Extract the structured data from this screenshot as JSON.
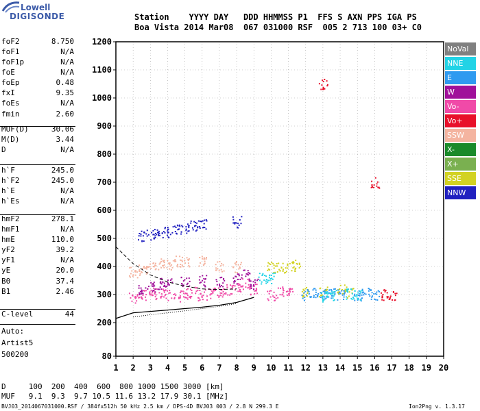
{
  "logo": {
    "top": "Lowell",
    "bottom": "DIGISONDE"
  },
  "header": {
    "line1": "Station    YYYY DAY   DDD HHMMSS P1  FFS S AXN PPS IGA PS",
    "line2": "Boa Vista 2014 Mar08  067 031000 RSF  005 2 713 100 03+ C0"
  },
  "params": [
    {
      "label": "foF2",
      "value": "8.750"
    },
    {
      "label": "foF1",
      "value": "N/A"
    },
    {
      "label": "foF1p",
      "value": "N/A"
    },
    {
      "label": "foE",
      "value": "N/A"
    },
    {
      "label": "foEp",
      "value": "0.48"
    },
    {
      "label": "fxI",
      "value": "9.35"
    },
    {
      "label": "foEs",
      "value": "N/A"
    },
    {
      "label": "fmin",
      "value": "2.60"
    },
    {
      "label": "MUF(D)",
      "value": "30.06"
    },
    {
      "label": "M(D)",
      "value": "3.44"
    },
    {
      "label": "D",
      "value": "N/A"
    },
    {
      "label": "h`F",
      "value": "245.0"
    },
    {
      "label": "h`F2",
      "value": "245.0"
    },
    {
      "label": "h`E",
      "value": "N/A"
    },
    {
      "label": "h`Es",
      "value": "N/A"
    },
    {
      "label": "hmF2",
      "value": "278.1"
    },
    {
      "label": "hmF1",
      "value": "N/A"
    },
    {
      "label": "hmE",
      "value": "110.0"
    },
    {
      "label": "yF2",
      "value": "39.2"
    },
    {
      "label": "yF1",
      "value": "N/A"
    },
    {
      "label": "yE",
      "value": "20.0"
    },
    {
      "label": "B0",
      "value": "37.4"
    },
    {
      "label": "B1",
      "value": "2.46"
    },
    {
      "label": "C-level",
      "value": "44"
    }
  ],
  "auto": {
    "line1": "Auto:",
    "line2": "Artist5",
    "line3": "500200"
  },
  "legend": [
    {
      "label": "NoVal",
      "color": "#808080"
    },
    {
      "label": "NNE",
      "color": "#22d3e6"
    },
    {
      "label": "E",
      "color": "#2f9af0"
    },
    {
      "label": "W",
      "color": "#a0109a"
    },
    {
      "label": "Vo-",
      "color": "#f04aa8"
    },
    {
      "label": "Vo+",
      "color": "#e8102a"
    },
    {
      "label": "SSW",
      "color": "#f4b4a0"
    },
    {
      "label": "X-",
      "color": "#1a8a2a"
    },
    {
      "label": "X+",
      "color": "#7ab050"
    },
    {
      "label": "SSE",
      "color": "#d2d222"
    },
    {
      "label": "NNW",
      "color": "#2020c0"
    }
  ],
  "chart_data": {
    "type": "scatter",
    "x_ticks": [
      "1",
      "2",
      "3",
      "4",
      "5",
      "6",
      "7",
      "8",
      "9",
      "10",
      "11",
      "12",
      "13",
      "14",
      "15",
      "16",
      "17",
      "18",
      "19",
      "20"
    ],
    "y_ticks": [
      "80",
      "200",
      "300",
      "400",
      "500",
      "600",
      "700",
      "800",
      "900",
      "1000",
      "1100",
      "1200"
    ],
    "xlim": [
      1,
      20
    ],
    "ylim": [
      80,
      1200
    ],
    "series": [
      {
        "label": "Vo-",
        "points": [
          [
            2.0,
            290
          ],
          [
            2.5,
            300
          ],
          [
            3.0,
            310
          ],
          [
            3.5,
            305
          ],
          [
            4.0,
            300
          ],
          [
            4.5,
            295
          ],
          [
            5.0,
            305
          ],
          [
            5.5,
            310
          ],
          [
            6.0,
            300
          ],
          [
            6.5,
            305
          ],
          [
            7.0,
            310
          ],
          [
            7.5,
            320
          ],
          [
            8.0,
            330
          ],
          [
            8.5,
            340
          ],
          [
            9.0,
            320
          ],
          [
            10.0,
            300
          ],
          [
            10.5,
            310
          ],
          [
            11.0,
            310
          ]
        ]
      },
      {
        "label": "W",
        "points": [
          [
            2.5,
            320
          ],
          [
            3.0,
            330
          ],
          [
            3.5,
            340
          ],
          [
            4.0,
            340
          ],
          [
            5.0,
            350
          ],
          [
            6.0,
            350
          ],
          [
            7.0,
            350
          ],
          [
            8.0,
            360
          ],
          [
            8.5,
            370
          ],
          [
            9.0,
            340
          ]
        ]
      },
      {
        "label": "SSW",
        "points": [
          [
            2.0,
            380
          ],
          [
            2.5,
            390
          ],
          [
            3.0,
            400
          ],
          [
            3.5,
            410
          ],
          [
            4.0,
            410
          ],
          [
            4.5,
            420
          ],
          [
            5.0,
            420
          ],
          [
            6.0,
            420
          ],
          [
            7.0,
            400
          ],
          [
            8.0,
            400
          ]
        ]
      },
      {
        "label": "NNW",
        "points": [
          [
            2.5,
            510
          ],
          [
            3.0,
            515
          ],
          [
            3.5,
            520
          ],
          [
            4.0,
            525
          ],
          [
            4.5,
            530
          ],
          [
            5.0,
            540
          ],
          [
            5.5,
            545
          ],
          [
            6.0,
            550
          ],
          [
            8.0,
            560
          ]
        ]
      },
      {
        "label": "SSE",
        "points": [
          [
            10.0,
            400
          ],
          [
            10.5,
            395
          ],
          [
            11.0,
            400
          ],
          [
            11.5,
            405
          ],
          [
            12.0,
            310
          ],
          [
            13.0,
            310
          ],
          [
            14.0,
            320
          ],
          [
            14.5,
            310
          ]
        ]
      },
      {
        "label": "E",
        "points": [
          [
            12.0,
            300
          ],
          [
            12.5,
            305
          ],
          [
            13.0,
            300
          ],
          [
            13.5,
            305
          ],
          [
            14.0,
            300
          ],
          [
            15.0,
            300
          ],
          [
            15.5,
            305
          ],
          [
            16.0,
            300
          ]
        ]
      },
      {
        "label": "NNE",
        "points": [
          [
            9.5,
            360
          ],
          [
            10.0,
            360
          ],
          [
            13.0,
            295
          ],
          [
            13.5,
            300
          ],
          [
            14.5,
            305
          ],
          [
            15.0,
            300
          ]
        ]
      },
      {
        "label": "Vo+",
        "points": [
          [
            16.5,
            300
          ],
          [
            17.0,
            300
          ],
          [
            13.0,
            1050
          ],
          [
            16.0,
            700
          ]
        ]
      }
    ]
  },
  "bottom": {
    "d_line": "D     100  200  400  600  800 1000 1500 3000 [km]",
    "muf_line": "MUF   9.1  9.3  9.7 10.5 11.6 13.2 17.9 30.1 [MHz]",
    "footer_left": "BVJ03_2014067031000.RSF / 384fx512h 50 kHz 2.5 km / DPS-4D BVJ03 003 / 2.8 N 299.3 E",
    "footer_right": "Ion2Png v. 1.3.17"
  }
}
